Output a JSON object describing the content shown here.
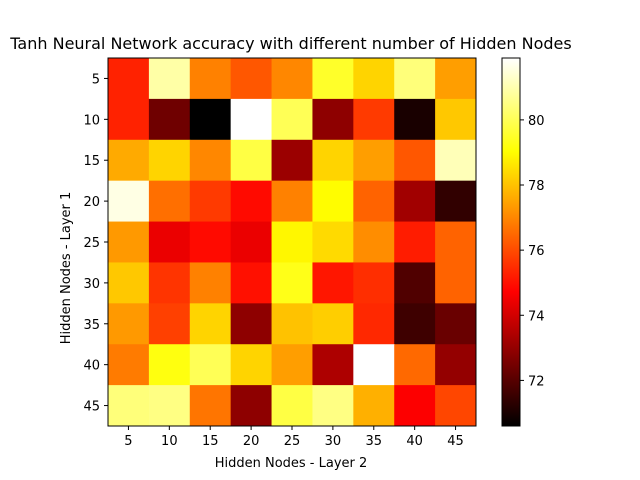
{
  "chart_data": {
    "type": "heatmap",
    "title": "Tanh Neural Network accuracy with different number of Hidden Nodes",
    "xlabel": "Hidden Nodes - Layer 2",
    "ylabel": "Hidden Nodes - Layer 1",
    "x_categories": [
      "5",
      "10",
      "15",
      "20",
      "25",
      "30",
      "35",
      "40",
      "45"
    ],
    "y_categories": [
      "5",
      "10",
      "15",
      "20",
      "25",
      "30",
      "35",
      "40",
      "45"
    ],
    "colormap": "hot",
    "vmin": 70.6,
    "vmax": 81.9,
    "colorbar_ticks": [
      72,
      74,
      76,
      78,
      80
    ],
    "values": [
      [
        75.3,
        80.9,
        76.9,
        76.2,
        77.0,
        79.5,
        78.3,
        80.4,
        77.4
      ],
      [
        75.3,
        72.4,
        70.6,
        81.9,
        80.0,
        72.9,
        75.7,
        71.0,
        78.1
      ],
      [
        77.6,
        78.3,
        77.0,
        79.8,
        73.1,
        78.3,
        77.4,
        76.2,
        81.1
      ],
      [
        81.6,
        76.6,
        75.7,
        74.9,
        76.9,
        79.0,
        76.4,
        73.2,
        71.4
      ],
      [
        77.3,
        74.4,
        74.9,
        74.4,
        78.9,
        78.4,
        77.1,
        75.2,
        76.4
      ],
      [
        78.1,
        75.6,
        76.9,
        75.0,
        79.3,
        75.1,
        75.5,
        71.9,
        76.4
      ],
      [
        77.3,
        75.8,
        78.3,
        72.9,
        78.0,
        78.2,
        75.4,
        71.6,
        72.3
      ],
      [
        76.8,
        79.2,
        80.0,
        78.3,
        77.4,
        73.4,
        81.9,
        76.5,
        73.0
      ],
      [
        80.4,
        80.5,
        76.7,
        72.9,
        79.8,
        80.5,
        77.7,
        74.7,
        75.9
      ]
    ]
  }
}
